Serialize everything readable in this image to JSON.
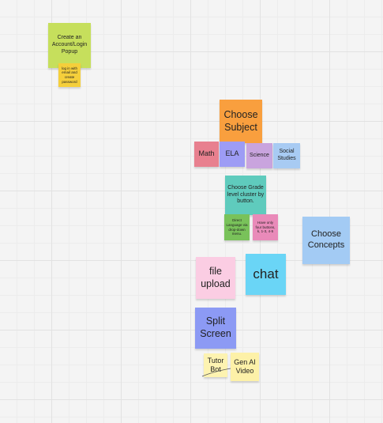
{
  "notes": [
    {
      "text": "Create an Account/Login Popup"
    },
    {
      "text": "log in with email and create password"
    },
    {
      "text": "Choose Subject"
    },
    {
      "text": "Math"
    },
    {
      "text": "ELA"
    },
    {
      "text": "Science"
    },
    {
      "text": "Social Studies"
    },
    {
      "text": "Choose Grade level cluster by button."
    },
    {
      "text": "Direct Language via drop-down menu."
    },
    {
      "text": "Have only four buttons, k, 1-3, 4-5"
    },
    {
      "text": "Choose Concepts"
    },
    {
      "text": "file upload"
    },
    {
      "text": "chat"
    },
    {
      "text": "Split Screen"
    },
    {
      "text": "Tutor Bot"
    },
    {
      "text": "Gen AI Video"
    }
  ]
}
